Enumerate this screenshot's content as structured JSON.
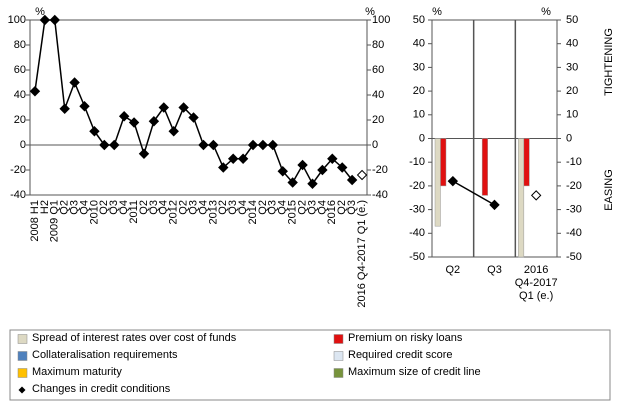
{
  "chart_data": [
    {
      "type": "line",
      "categories": [
        "2008 H1",
        "H2",
        "2009 Q1",
        "Q2",
        "Q3",
        "Q4",
        "2010",
        "Q2",
        "Q3",
        "Q4",
        "2011",
        "Q2",
        "Q3",
        "Q4",
        "2012",
        "Q2",
        "Q3",
        "Q4",
        "2013",
        "Q2",
        "Q3",
        "Q4",
        "2014",
        "Q2",
        "Q3",
        "Q4",
        "2015",
        "Q2",
        "Q3",
        "Q4",
        "2016",
        "Q2",
        "Q3",
        "2016 Q4-2017 Q1 (e.)"
      ],
      "series": [
        {
          "color": "#000000",
          "hollow_last": true,
          "values": [
            43,
            100,
            100,
            29,
            50,
            31,
            11,
            0,
            0,
            23,
            18,
            -7,
            19,
            30,
            11,
            30,
            22,
            0,
            0,
            -18,
            -11,
            -11,
            0,
            0,
            0,
            -21,
            -30,
            -16,
            -31,
            -20,
            -11,
            -18,
            -28,
            -24
          ]
        }
      ],
      "y_label": "%",
      "y2_label": "%",
      "ylim": [
        -40,
        100
      ],
      "yticks": [
        -40,
        -20,
        0,
        20,
        40,
        60,
        80,
        100
      ],
      "y2lim": [
        -40,
        100
      ],
      "y2ticks": [
        -40,
        -20,
        0,
        20,
        40,
        60,
        80,
        100
      ]
    },
    {
      "type": "bar",
      "categories": [
        "Q2",
        "Q3",
        "2016 Q4-2017 Q1 (e.)"
      ],
      "series": [
        {
          "name": "Spread of interest rates over cost of funds",
          "color": "#ddd9c3",
          "values": [
            -37,
            0,
            -50
          ]
        },
        {
          "name": "Premium on risky loans",
          "color": "#e01010",
          "values": [
            -20,
            -24,
            -20
          ]
        },
        {
          "name": "Collateralisation requirements",
          "color": "#4f81bd",
          "values": [
            0,
            0,
            0
          ]
        },
        {
          "name": "Required credit score",
          "color": "#dce6f1",
          "values": [
            0,
            0,
            0
          ]
        },
        {
          "name": "Maximum maturity",
          "color": "#ffc000",
          "values": [
            0,
            0,
            0
          ]
        },
        {
          "name": "Maximum size of credit line",
          "color": "#77933c",
          "values": [
            0,
            0,
            0
          ]
        },
        {
          "name": "Changes in credit conditions",
          "color": "#000000",
          "type": "line",
          "hollow_last": true,
          "values": [
            -18,
            -28,
            -24
          ]
        }
      ],
      "y_label": "%",
      "y2_label": "%",
      "annotations": [
        "TIGHTENING",
        "EASING"
      ],
      "ylim": [
        -50,
        50
      ],
      "yticks": [
        -50,
        -40,
        -30,
        -20,
        -10,
        0,
        10,
        20,
        30,
        40,
        50
      ],
      "y2lim": [
        -50,
        50
      ],
      "y2ticks": [
        -50,
        -40,
        -30,
        -20,
        -10,
        0,
        10,
        20,
        30,
        40,
        50
      ]
    }
  ]
}
